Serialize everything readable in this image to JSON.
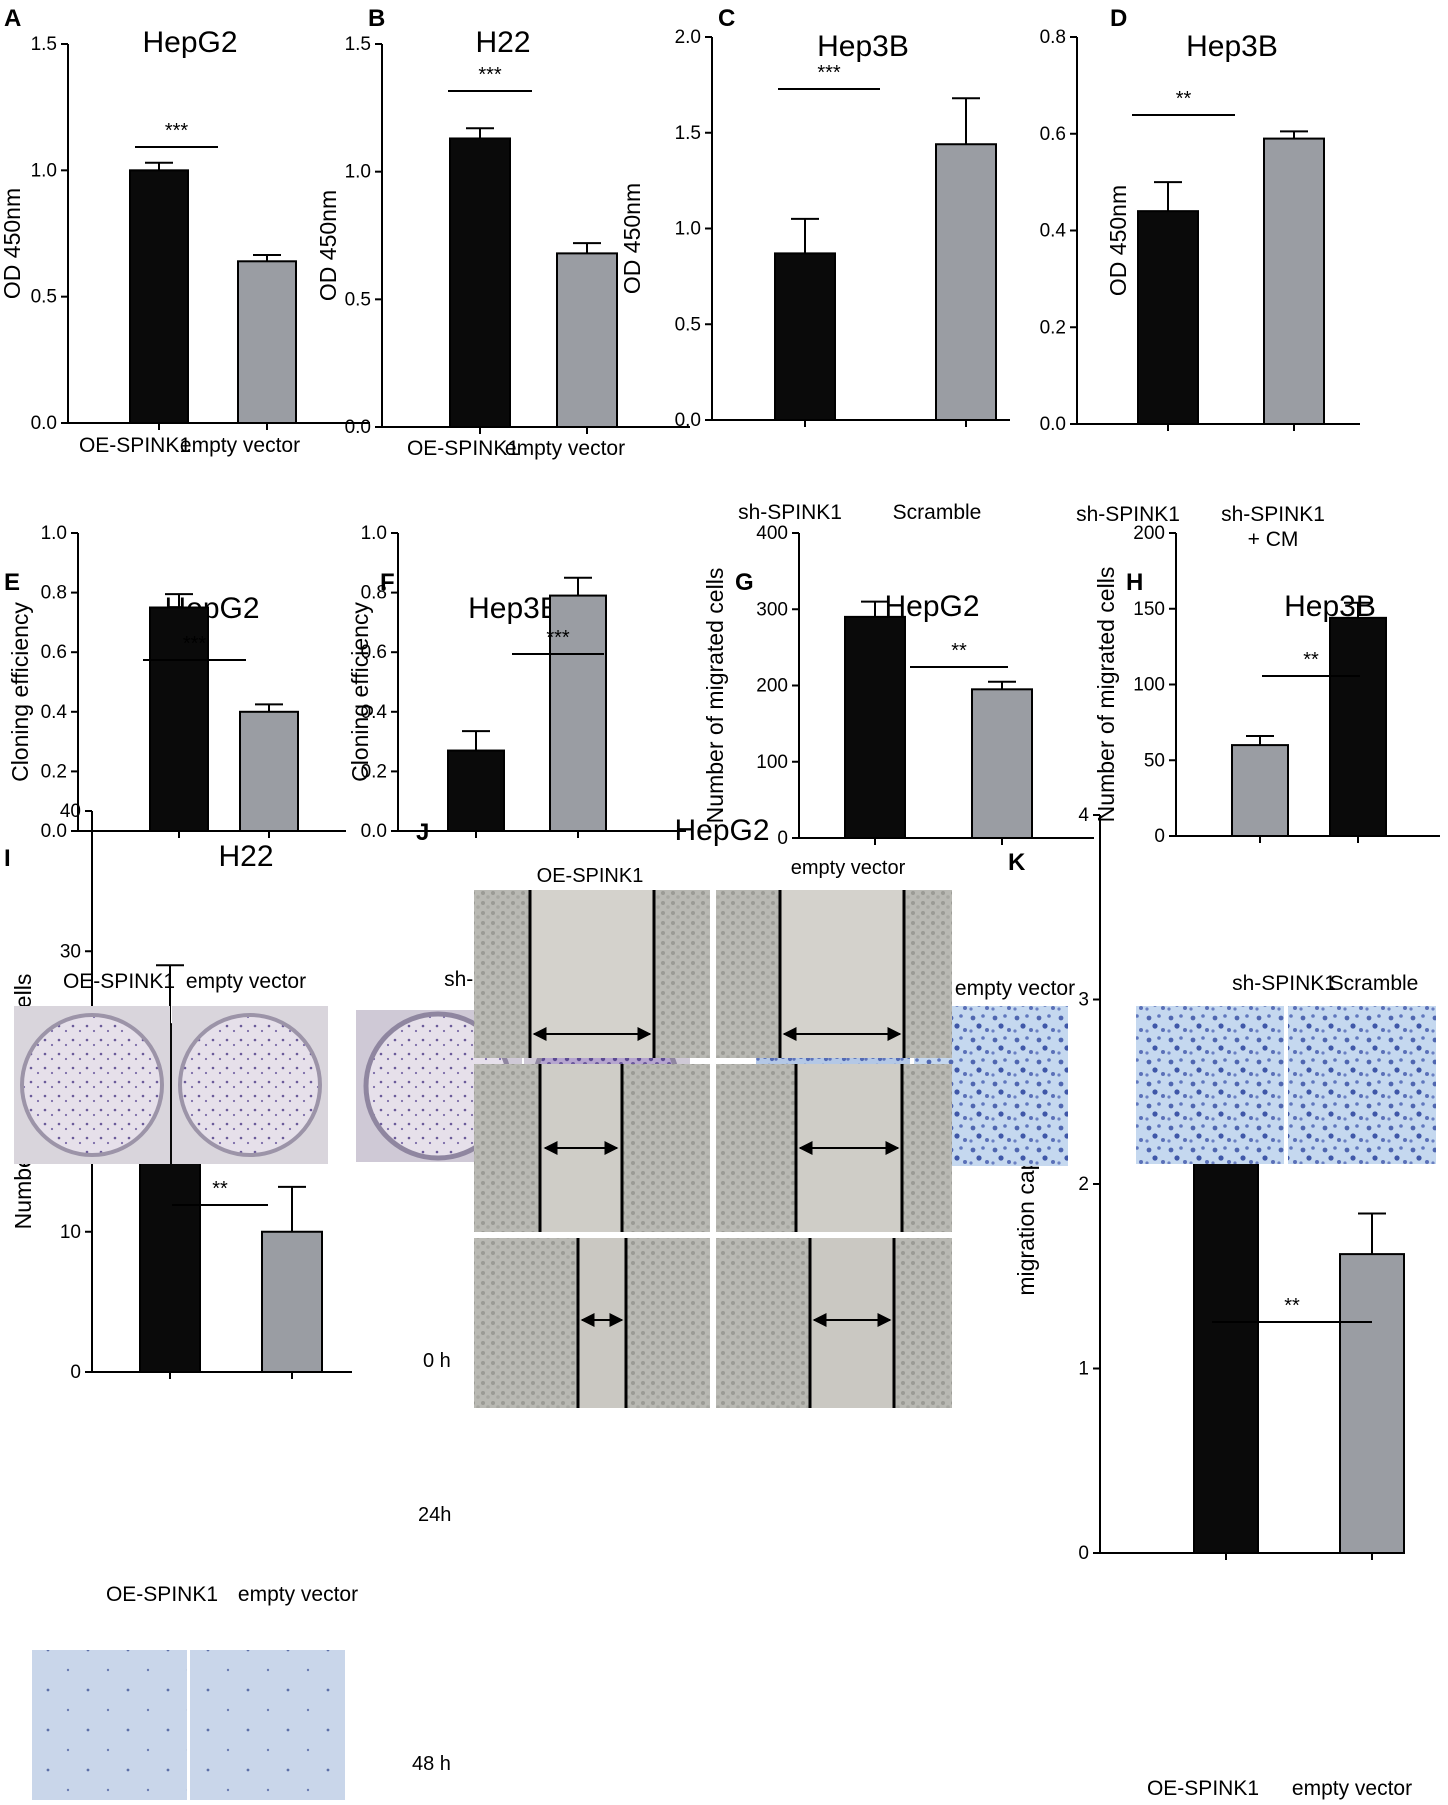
{
  "colors": {
    "black_bar": "#0a0a0a",
    "gray_bar": "#9a9da3",
    "colony_purple": "#5b4a8c",
    "transwell_blue": "#3e58a8",
    "transwell_bg": "#bdd3ec",
    "wound_bg": "#c9c9c5"
  },
  "chart_data": [
    {
      "id": "A",
      "type": "bar",
      "title": "HepG2",
      "ylabel": "OD 450nm",
      "categories": [
        "OE-SPINK1",
        "empty vector"
      ],
      "values": [
        1.0,
        0.64
      ],
      "errors": [
        0.03,
        0.025
      ],
      "ylim": [
        0,
        1.5
      ],
      "yticks": [
        "0.0",
        "0.5",
        "1.0",
        "1.5"
      ],
      "bar_colors": [
        "black",
        "gray"
      ],
      "significance": "***"
    },
    {
      "id": "B",
      "type": "bar",
      "title": "H22",
      "ylabel": "OD 450nm",
      "categories": [
        "OE-SPINK1",
        "empty vector"
      ],
      "values": [
        1.13,
        0.68
      ],
      "errors": [
        0.04,
        0.04
      ],
      "ylim": [
        0,
        1.5
      ],
      "yticks": [
        "0.0",
        "0.5",
        "1.0",
        "1.5"
      ],
      "bar_colors": [
        "black",
        "gray"
      ],
      "significance": "***"
    },
    {
      "id": "C",
      "type": "bar",
      "title": "Hep3B",
      "ylabel": "OD 450nm",
      "categories": [
        "sh-SPINK1",
        "Scramble"
      ],
      "values": [
        0.87,
        1.44
      ],
      "errors": [
        0.18,
        0.24
      ],
      "ylim": [
        0,
        2.0
      ],
      "yticks": [
        "0.0",
        "0.5",
        "1.0",
        "1.5",
        "2.0"
      ],
      "bar_colors": [
        "black",
        "gray"
      ],
      "significance": "***"
    },
    {
      "id": "D",
      "type": "bar",
      "title": "Hep3B",
      "ylabel": "OD 450nm",
      "categories": [
        "sh-SPINK1",
        "sh-SPINK1\n+ CM"
      ],
      "values": [
        0.44,
        0.59
      ],
      "errors": [
        0.06,
        0.015
      ],
      "ylim": [
        0,
        0.8
      ],
      "yticks": [
        "0.0",
        "0.2",
        "0.4",
        "0.6",
        "0.8"
      ],
      "bar_colors": [
        "black",
        "gray"
      ],
      "significance": "**"
    },
    {
      "id": "E",
      "type": "bar",
      "title": "HepG2",
      "ylabel": "Cloning efficiency",
      "categories": [
        "OE-SPINK1",
        "empty vector"
      ],
      "values": [
        0.75,
        0.4
      ],
      "errors": [
        0.045,
        0.025
      ],
      "ylim": [
        0,
        1.0
      ],
      "yticks": [
        "0.0",
        "0.2",
        "0.4",
        "0.6",
        "0.8",
        "1.0"
      ],
      "bar_colors": [
        "black",
        "gray"
      ],
      "significance": "***"
    },
    {
      "id": "F",
      "type": "bar",
      "title": "Hep3B",
      "ylabel": "Cloning efficiency",
      "categories": [
        "sh-SPINK1",
        "Scramble"
      ],
      "values": [
        0.27,
        0.79
      ],
      "errors": [
        0.065,
        0.06
      ],
      "ylim": [
        0,
        1.0
      ],
      "yticks": [
        "0.0",
        "0.2",
        "0.4",
        "0.6",
        "0.8",
        "1.0"
      ],
      "bar_colors": [
        "black",
        "gray"
      ],
      "significance": "***"
    },
    {
      "id": "G",
      "type": "bar",
      "title": "HepG2",
      "ylabel": "Number of migrated cells",
      "categories": [
        "OE-SPINK1",
        "empty vector"
      ],
      "values": [
        290,
        195
      ],
      "errors": [
        20,
        10
      ],
      "ylim": [
        0,
        400
      ],
      "yticks": [
        "0",
        "100",
        "200",
        "300",
        "400"
      ],
      "bar_colors": [
        "black",
        "gray"
      ],
      "significance": "**"
    },
    {
      "id": "H",
      "type": "bar",
      "title": "Hep3B",
      "ylabel": "Number of migrated cells",
      "categories": [
        "sh-SPINK1",
        "Scramble"
      ],
      "values": [
        60,
        144
      ],
      "errors": [
        6,
        10
      ],
      "ylim": [
        0,
        200
      ],
      "yticks": [
        "0",
        "50",
        "100",
        "150",
        "200"
      ],
      "bar_colors": [
        "gray",
        "black"
      ],
      "significance": "**"
    },
    {
      "id": "I",
      "type": "bar",
      "title": "H22",
      "ylabel": "Number of migrated cells",
      "categories": [
        "OE-SPINK1",
        "empty vector"
      ],
      "values": [
        24.8,
        10
      ],
      "errors": [
        4.2,
        3.2
      ],
      "ylim": [
        0,
        40
      ],
      "yticks": [
        "0",
        "10",
        "20",
        "30",
        "40"
      ],
      "bar_colors": [
        "black",
        "gray"
      ],
      "significance": "**"
    },
    {
      "id": "K",
      "type": "bar",
      "title": "",
      "ylabel": "migration capacities",
      "categories": [
        "OE-SPINK1",
        "empty vector"
      ],
      "values": [
        2.7,
        1.62
      ],
      "errors": [
        0.22,
        0.22
      ],
      "ylim": [
        0,
        4
      ],
      "yticks": [
        "0",
        "1",
        "2",
        "3",
        "4"
      ],
      "bar_colors": [
        "black",
        "gray"
      ],
      "significance": "**"
    }
  ],
  "wound_panel": {
    "id": "J",
    "title": "HepG2",
    "columns": [
      "OE-SPINK1",
      "empty vector"
    ],
    "rows": [
      "0 h",
      "24h",
      "48 h"
    ]
  }
}
